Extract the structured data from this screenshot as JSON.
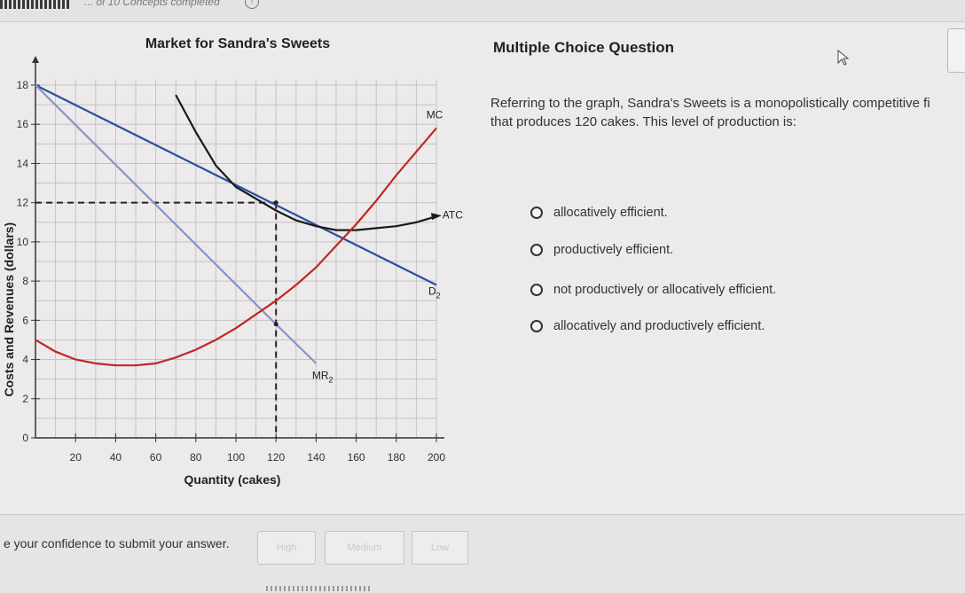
{
  "header": {
    "progress_text": "... of 10 Concepts completed",
    "info_symbol": "!"
  },
  "chart_data": {
    "type": "line",
    "title": "Market for Sandra's Sweets",
    "xlabel": "Quantity (cakes)",
    "ylabel": "Costs and Revenues (dollars)",
    "xlim": [
      0,
      200
    ],
    "ylim": [
      0,
      18
    ],
    "x_ticks": [
      20,
      40,
      60,
      80,
      100,
      120,
      140,
      160,
      180,
      200
    ],
    "y_ticks": [
      0,
      2,
      4,
      6,
      8,
      10,
      12,
      14,
      16,
      18
    ],
    "grid": true,
    "series": [
      {
        "name": "D2",
        "color": "#2c4fa0",
        "points": [
          [
            0,
            18
          ],
          [
            200,
            7.8
          ]
        ]
      },
      {
        "name": "MR2",
        "color": "#8a93c8",
        "points": [
          [
            0,
            18
          ],
          [
            120,
            5.8
          ],
          [
            140,
            3.8
          ]
        ]
      },
      {
        "name": "ATC",
        "color": "#1a1a1a",
        "points": [
          [
            70,
            17.5
          ],
          [
            80,
            15.6
          ],
          [
            90,
            13.9
          ],
          [
            100,
            12.8
          ],
          [
            110,
            12.2
          ],
          [
            120,
            11.6
          ],
          [
            130,
            11.1
          ],
          [
            140,
            10.8
          ],
          [
            150,
            10.6
          ],
          [
            160,
            10.6
          ],
          [
            170,
            10.7
          ],
          [
            180,
            10.8
          ],
          [
            190,
            11.0
          ],
          [
            200,
            11.3
          ]
        ]
      },
      {
        "name": "MC",
        "color": "#c02727",
        "points": [
          [
            0,
            5.0
          ],
          [
            10,
            4.4
          ],
          [
            20,
            4.0
          ],
          [
            30,
            3.8
          ],
          [
            40,
            3.7
          ],
          [
            50,
            3.7
          ],
          [
            60,
            3.8
          ],
          [
            70,
            4.1
          ],
          [
            80,
            4.5
          ],
          [
            90,
            5.0
          ],
          [
            100,
            5.6
          ],
          [
            110,
            6.3
          ],
          [
            120,
            7.0
          ],
          [
            130,
            7.8
          ],
          [
            140,
            8.7
          ],
          [
            150,
            9.8
          ],
          [
            160,
            10.9
          ],
          [
            170,
            12.1
          ],
          [
            180,
            13.4
          ],
          [
            190,
            14.6
          ],
          [
            200,
            15.8
          ]
        ]
      }
    ],
    "annotations": [
      {
        "text": "MC",
        "x": 195,
        "y": 16.3
      },
      {
        "text": "ATC",
        "x": 203,
        "y": 11.2
      },
      {
        "text": "D",
        "sub": "2",
        "x": 196,
        "y": 7.3
      },
      {
        "text": "MR",
        "sub": "2",
        "x": 138,
        "y": 3.0
      }
    ],
    "reference_lines": {
      "q": 120,
      "p": 12,
      "marks": [
        12,
        5.8
      ]
    }
  },
  "question": {
    "title": "Multiple Choice Question",
    "line1": "Referring to the graph, Sandra's Sweets is a monopolistically competitive fi",
    "line2": "that produces 120 cakes. This level of production is:",
    "options": [
      "allocatively efficient.",
      "productively efficient.",
      "not productively or allocatively efficient.",
      "allocatively and productively efficient."
    ]
  },
  "footer": {
    "confidence_label": "e your confidence to submit your answer.",
    "buttons": [
      "High",
      "Medium",
      "Low"
    ]
  }
}
